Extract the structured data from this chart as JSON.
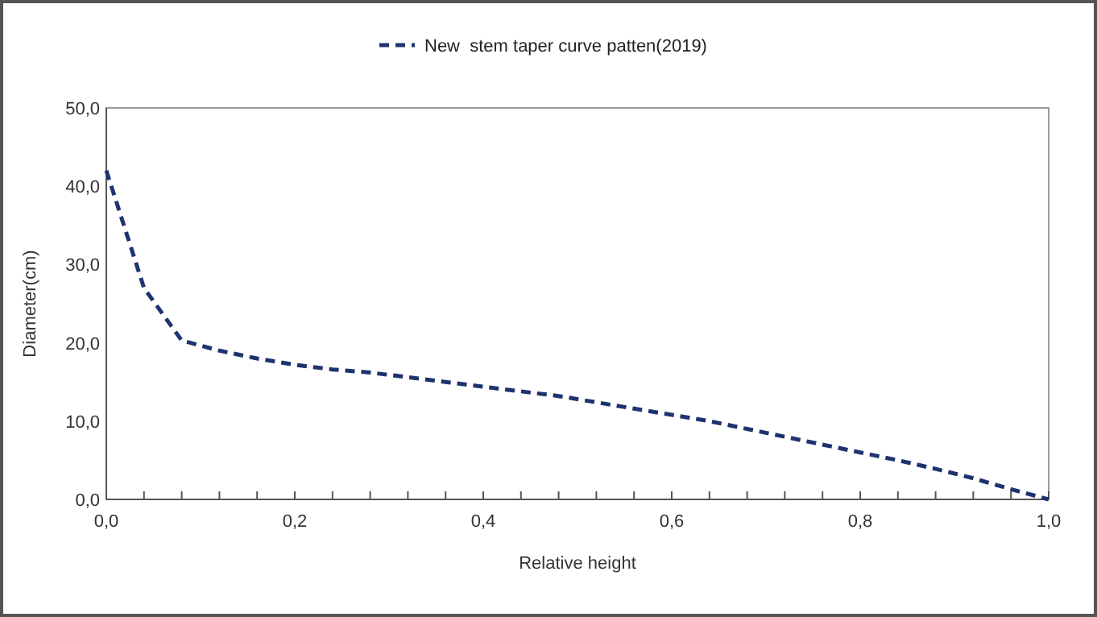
{
  "chart_data": {
    "type": "line",
    "xlabel": "Relative height",
    "ylabel": "Diameter(cm)",
    "x": [
      0,
      0.04,
      0.08,
      0.12,
      0.16,
      0.2,
      0.24,
      0.28,
      0.32,
      0.36,
      0.4,
      0.44,
      0.48,
      0.52,
      0.56,
      0.6,
      0.64,
      0.68,
      0.72,
      0.76,
      0.8,
      0.84,
      0.88,
      0.92,
      0.96,
      1.0
    ],
    "series": [
      {
        "name": "New  stem taper curve patten(2019)",
        "color": "#1f3370",
        "values": [
          42,
          27,
          20.3,
          19,
          18,
          17.2,
          16.6,
          16.2,
          15.6,
          15,
          14.4,
          13.8,
          13.2,
          12.4,
          11.6,
          10.8,
          10,
          9,
          8,
          7,
          6,
          5,
          3.9,
          2.7,
          1.3,
          0
        ]
      }
    ],
    "xlim": [
      0,
      1
    ],
    "ylim": [
      0,
      50
    ],
    "xticks": [
      {
        "value": 0,
        "label": "0,0"
      },
      {
        "value": 0.04,
        "label": null
      },
      {
        "value": 0.08,
        "label": null
      },
      {
        "value": 0.12,
        "label": null
      },
      {
        "value": 0.16,
        "label": null
      },
      {
        "value": 0.2,
        "label": "0,2"
      },
      {
        "value": 0.24,
        "label": null
      },
      {
        "value": 0.28,
        "label": null
      },
      {
        "value": 0.32,
        "label": null
      },
      {
        "value": 0.36,
        "label": null
      },
      {
        "value": 0.4,
        "label": "0,4"
      },
      {
        "value": 0.44,
        "label": null
      },
      {
        "value": 0.48,
        "label": null
      },
      {
        "value": 0.52,
        "label": null
      },
      {
        "value": 0.56,
        "label": null
      },
      {
        "value": 0.6,
        "label": "0,6"
      },
      {
        "value": 0.64,
        "label": null
      },
      {
        "value": 0.68,
        "label": null
      },
      {
        "value": 0.72,
        "label": null
      },
      {
        "value": 0.76,
        "label": null
      },
      {
        "value": 0.8,
        "label": "0,8"
      },
      {
        "value": 0.84,
        "label": null
      },
      {
        "value": 0.88,
        "label": null
      },
      {
        "value": 0.92,
        "label": null
      },
      {
        "value": 0.96,
        "label": null
      },
      {
        "value": 1,
        "label": "1,0"
      }
    ],
    "yticks": [
      {
        "value": 0,
        "label": "0,0"
      },
      {
        "value": 10,
        "label": "10,0"
      },
      {
        "value": 20,
        "label": "20,0"
      },
      {
        "value": 30,
        "label": "30,0"
      },
      {
        "value": 40,
        "label": "40,0"
      },
      {
        "value": 50,
        "label": "50,0"
      }
    ],
    "legend": "top",
    "line_style": "dashed",
    "marker": "none",
    "grid": false
  }
}
